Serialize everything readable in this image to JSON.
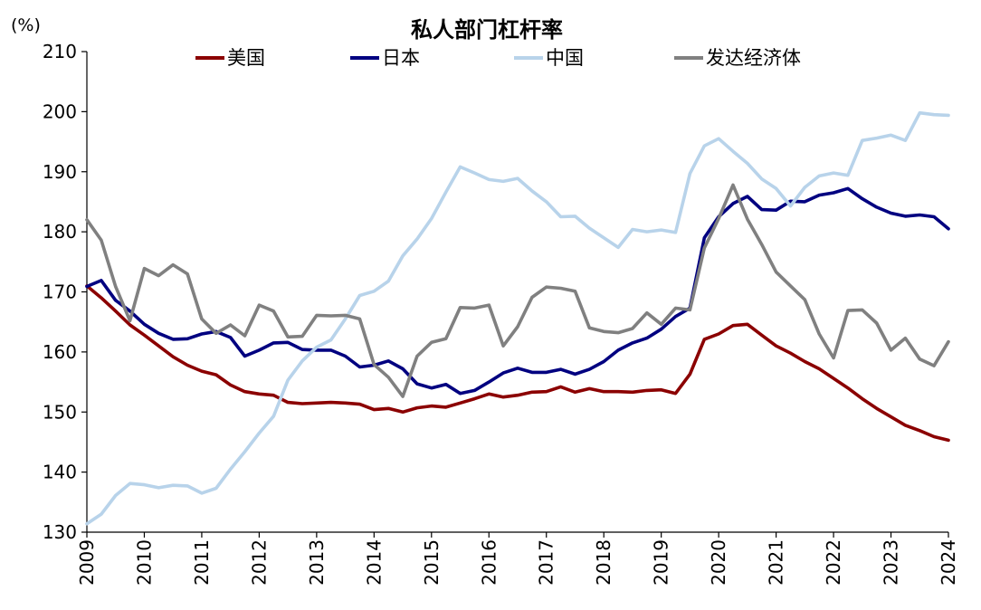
{
  "chart_data": {
    "type": "line",
    "title": "私人部门杠杆率",
    "unit_label": "(%)",
    "ylim": [
      130,
      210
    ],
    "y_ticks": [
      130,
      140,
      150,
      160,
      170,
      180,
      190,
      200,
      210
    ],
    "x_range": [
      2009,
      2024
    ],
    "x_ticks": [
      "2009",
      "2010",
      "2011",
      "2012",
      "2013",
      "2014",
      "2015",
      "2016",
      "2017",
      "2018",
      "2019",
      "2020",
      "2021",
      "2022",
      "2023",
      "2024"
    ],
    "grid": false,
    "legend_position": "top",
    "series": [
      {
        "name": "美国",
        "color": "#8b0000",
        "points": [
          [
            2009.0,
            171.0
          ],
          [
            2009.25,
            169.0
          ],
          [
            2009.5,
            166.8
          ],
          [
            2009.75,
            164.5
          ],
          [
            2010.0,
            162.8
          ],
          [
            2010.25,
            161.0
          ],
          [
            2010.5,
            159.2
          ],
          [
            2010.75,
            157.8
          ],
          [
            2011.0,
            156.8
          ],
          [
            2011.25,
            156.2
          ],
          [
            2011.5,
            154.5
          ],
          [
            2011.75,
            153.4
          ],
          [
            2012.0,
            153.0
          ],
          [
            2012.25,
            152.8
          ],
          [
            2012.5,
            151.6
          ],
          [
            2012.75,
            151.4
          ],
          [
            2013.0,
            151.5
          ],
          [
            2013.25,
            151.6
          ],
          [
            2013.5,
            151.5
          ],
          [
            2013.75,
            151.3
          ],
          [
            2014.0,
            150.4
          ],
          [
            2014.25,
            150.6
          ],
          [
            2014.5,
            150.0
          ],
          [
            2014.75,
            150.7
          ],
          [
            2015.0,
            151.0
          ],
          [
            2015.25,
            150.8
          ],
          [
            2015.5,
            151.5
          ],
          [
            2015.75,
            152.2
          ],
          [
            2016.0,
            153.0
          ],
          [
            2016.25,
            152.5
          ],
          [
            2016.5,
            152.8
          ],
          [
            2016.75,
            153.3
          ],
          [
            2017.0,
            153.4
          ],
          [
            2017.25,
            154.2
          ],
          [
            2017.5,
            153.3
          ],
          [
            2017.75,
            153.9
          ],
          [
            2018.0,
            153.4
          ],
          [
            2018.25,
            153.4
          ],
          [
            2018.5,
            153.3
          ],
          [
            2018.75,
            153.6
          ],
          [
            2019.0,
            153.7
          ],
          [
            2019.25,
            153.1
          ],
          [
            2019.5,
            156.3
          ],
          [
            2019.75,
            162.1
          ],
          [
            2020.0,
            163.0
          ],
          [
            2020.25,
            164.4
          ],
          [
            2020.5,
            164.6
          ],
          [
            2020.75,
            162.8
          ],
          [
            2021.0,
            161.0
          ],
          [
            2021.25,
            159.8
          ],
          [
            2021.5,
            158.4
          ],
          [
            2021.75,
            157.2
          ],
          [
            2022.0,
            155.6
          ],
          [
            2022.25,
            154.0
          ],
          [
            2022.5,
            152.2
          ],
          [
            2022.75,
            150.6
          ],
          [
            2023.0,
            149.2
          ],
          [
            2023.25,
            147.8
          ],
          [
            2023.5,
            146.9
          ],
          [
            2023.75,
            145.9
          ],
          [
            2024.0,
            145.3
          ]
        ]
      },
      {
        "name": "日本",
        "color": "#000080",
        "points": [
          [
            2009.0,
            170.9
          ],
          [
            2009.25,
            171.9
          ],
          [
            2009.5,
            168.6
          ],
          [
            2009.75,
            166.8
          ],
          [
            2010.0,
            164.6
          ],
          [
            2010.25,
            163.1
          ],
          [
            2010.5,
            162.1
          ],
          [
            2010.75,
            162.2
          ],
          [
            2011.0,
            163.0
          ],
          [
            2011.25,
            163.4
          ],
          [
            2011.5,
            162.4
          ],
          [
            2011.75,
            159.3
          ],
          [
            2012.0,
            160.3
          ],
          [
            2012.25,
            161.5
          ],
          [
            2012.5,
            161.6
          ],
          [
            2012.75,
            160.4
          ],
          [
            2013.0,
            160.3
          ],
          [
            2013.25,
            160.3
          ],
          [
            2013.5,
            159.3
          ],
          [
            2013.75,
            157.5
          ],
          [
            2014.0,
            157.8
          ],
          [
            2014.25,
            158.5
          ],
          [
            2014.5,
            157.2
          ],
          [
            2014.75,
            154.7
          ],
          [
            2015.0,
            154.0
          ],
          [
            2015.25,
            154.6
          ],
          [
            2015.5,
            153.1
          ],
          [
            2015.75,
            153.6
          ],
          [
            2016.0,
            155.0
          ],
          [
            2016.25,
            156.5
          ],
          [
            2016.5,
            157.3
          ],
          [
            2016.75,
            156.6
          ],
          [
            2017.0,
            156.6
          ],
          [
            2017.25,
            157.1
          ],
          [
            2017.5,
            156.3
          ],
          [
            2017.75,
            157.1
          ],
          [
            2018.0,
            158.4
          ],
          [
            2018.25,
            160.3
          ],
          [
            2018.5,
            161.5
          ],
          [
            2018.75,
            162.3
          ],
          [
            2019.0,
            163.8
          ],
          [
            2019.25,
            165.9
          ],
          [
            2019.5,
            167.3
          ],
          [
            2019.75,
            179.0
          ],
          [
            2020.0,
            182.5
          ],
          [
            2020.25,
            184.7
          ],
          [
            2020.5,
            185.9
          ],
          [
            2020.75,
            183.7
          ],
          [
            2021.0,
            183.6
          ],
          [
            2021.25,
            185.1
          ],
          [
            2021.5,
            185.0
          ],
          [
            2021.75,
            186.1
          ],
          [
            2022.0,
            186.5
          ],
          [
            2022.25,
            187.2
          ],
          [
            2022.5,
            185.5
          ],
          [
            2022.75,
            184.1
          ],
          [
            2023.0,
            183.1
          ],
          [
            2023.25,
            182.6
          ],
          [
            2023.5,
            182.8
          ],
          [
            2023.75,
            182.5
          ],
          [
            2024.0,
            180.5
          ]
        ]
      },
      {
        "name": "中国",
        "color": "#b8d3ea",
        "points": [
          [
            2009.0,
            131.4
          ],
          [
            2009.25,
            133.0
          ],
          [
            2009.5,
            136.1
          ],
          [
            2009.75,
            138.1
          ],
          [
            2010.0,
            137.9
          ],
          [
            2010.25,
            137.4
          ],
          [
            2010.5,
            137.8
          ],
          [
            2010.75,
            137.7
          ],
          [
            2011.0,
            136.5
          ],
          [
            2011.25,
            137.3
          ],
          [
            2011.5,
            140.5
          ],
          [
            2011.75,
            143.4
          ],
          [
            2012.0,
            146.5
          ],
          [
            2012.25,
            149.3
          ],
          [
            2012.5,
            155.3
          ],
          [
            2012.75,
            158.5
          ],
          [
            2013.0,
            160.8
          ],
          [
            2013.25,
            162.0
          ],
          [
            2013.5,
            165.5
          ],
          [
            2013.75,
            169.4
          ],
          [
            2014.0,
            170.1
          ],
          [
            2014.25,
            171.8
          ],
          [
            2014.5,
            176.0
          ],
          [
            2014.75,
            178.8
          ],
          [
            2015.0,
            182.2
          ],
          [
            2015.25,
            186.6
          ],
          [
            2015.5,
            190.8
          ],
          [
            2015.75,
            189.8
          ],
          [
            2016.0,
            188.7
          ],
          [
            2016.25,
            188.4
          ],
          [
            2016.5,
            188.9
          ],
          [
            2016.75,
            186.8
          ],
          [
            2017.0,
            185.0
          ],
          [
            2017.25,
            182.5
          ],
          [
            2017.5,
            182.6
          ],
          [
            2017.75,
            180.6
          ],
          [
            2018.0,
            179.0
          ],
          [
            2018.25,
            177.4
          ],
          [
            2018.5,
            180.4
          ],
          [
            2018.75,
            180.0
          ],
          [
            2019.0,
            180.3
          ],
          [
            2019.25,
            179.9
          ],
          [
            2019.5,
            189.7
          ],
          [
            2019.75,
            194.3
          ],
          [
            2020.0,
            195.5
          ],
          [
            2020.25,
            193.4
          ],
          [
            2020.5,
            191.4
          ],
          [
            2020.75,
            188.8
          ],
          [
            2021.0,
            187.2
          ],
          [
            2021.25,
            184.3
          ],
          [
            2021.5,
            187.4
          ],
          [
            2021.75,
            189.3
          ],
          [
            2022.0,
            189.8
          ],
          [
            2022.25,
            189.4
          ],
          [
            2022.5,
            195.2
          ],
          [
            2022.75,
            195.6
          ],
          [
            2023.0,
            196.1
          ],
          [
            2023.25,
            195.2
          ],
          [
            2023.5,
            199.8
          ],
          [
            2023.75,
            199.5
          ],
          [
            2024.0,
            199.4
          ]
        ]
      },
      {
        "name": "发达经济体",
        "color": "#808080",
        "points": [
          [
            2009.0,
            182.0
          ],
          [
            2009.25,
            178.6
          ],
          [
            2009.5,
            170.9
          ],
          [
            2009.75,
            165.2
          ],
          [
            2010.0,
            173.9
          ],
          [
            2010.25,
            172.7
          ],
          [
            2010.5,
            174.5
          ],
          [
            2010.75,
            173.0
          ],
          [
            2011.0,
            165.5
          ],
          [
            2011.25,
            163.1
          ],
          [
            2011.5,
            164.5
          ],
          [
            2011.75,
            162.7
          ],
          [
            2012.0,
            167.8
          ],
          [
            2012.25,
            166.8
          ],
          [
            2012.5,
            162.5
          ],
          [
            2012.75,
            162.6
          ],
          [
            2013.0,
            166.1
          ],
          [
            2013.25,
            166.0
          ],
          [
            2013.5,
            166.1
          ],
          [
            2013.75,
            165.5
          ],
          [
            2014.0,
            157.9
          ],
          [
            2014.25,
            155.8
          ],
          [
            2014.5,
            152.6
          ],
          [
            2014.75,
            159.3
          ],
          [
            2015.0,
            161.6
          ],
          [
            2015.25,
            162.2
          ],
          [
            2015.5,
            167.4
          ],
          [
            2015.75,
            167.3
          ],
          [
            2016.0,
            167.8
          ],
          [
            2016.25,
            161.0
          ],
          [
            2016.5,
            164.2
          ],
          [
            2016.75,
            169.1
          ],
          [
            2017.0,
            170.8
          ],
          [
            2017.25,
            170.6
          ],
          [
            2017.5,
            170.1
          ],
          [
            2017.75,
            164.0
          ],
          [
            2018.0,
            163.4
          ],
          [
            2018.25,
            163.2
          ],
          [
            2018.5,
            163.9
          ],
          [
            2018.75,
            166.5
          ],
          [
            2019.0,
            164.6
          ],
          [
            2019.25,
            167.3
          ],
          [
            2019.5,
            167.0
          ],
          [
            2019.75,
            177.3
          ],
          [
            2020.0,
            182.2
          ],
          [
            2020.25,
            187.8
          ],
          [
            2020.5,
            182.1
          ],
          [
            2020.75,
            177.9
          ],
          [
            2021.0,
            173.3
          ],
          [
            2021.25,
            171.0
          ],
          [
            2021.5,
            168.7
          ],
          [
            2021.75,
            163.0
          ],
          [
            2022.0,
            159.0
          ],
          [
            2022.25,
            166.9
          ],
          [
            2022.5,
            167.0
          ],
          [
            2022.75,
            164.8
          ],
          [
            2023.0,
            160.3
          ],
          [
            2023.25,
            162.3
          ],
          [
            2023.5,
            158.8
          ],
          [
            2023.75,
            157.7
          ],
          [
            2024.0,
            161.7
          ]
        ]
      }
    ]
  }
}
